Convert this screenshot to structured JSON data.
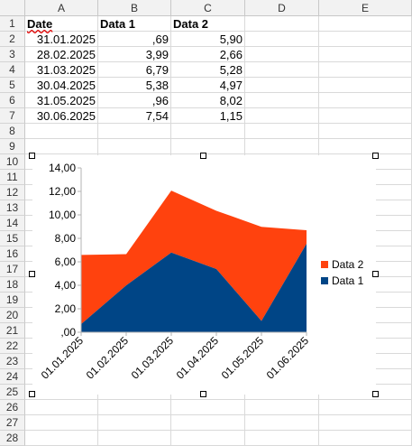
{
  "sheet": {
    "columns": [
      "A",
      "B",
      "C",
      "D",
      "E"
    ],
    "rows": [
      "1",
      "2",
      "3",
      "4",
      "5",
      "6",
      "7",
      "8",
      "9",
      "10",
      "11",
      "12",
      "13",
      "14",
      "15",
      "16",
      "17",
      "18",
      "19",
      "20",
      "21",
      "22",
      "23",
      "24",
      "25",
      "26",
      "27",
      "28"
    ],
    "headers": [
      "Date",
      "Data 1",
      "Data 2"
    ],
    "data": [
      [
        "31.01.2025",
        ",69",
        "5,90"
      ],
      [
        "28.02.2025",
        "3,99",
        "2,66"
      ],
      [
        "31.03.2025",
        "6,79",
        "5,28"
      ],
      [
        "30.04.2025",
        "5,38",
        "4,97"
      ],
      [
        "31.05.2025",
        ",96",
        "8,02"
      ],
      [
        "30.06.2025",
        "7,54",
        "1,15"
      ]
    ]
  },
  "chart_data": {
    "type": "area",
    "stacked": true,
    "categories": [
      "01.01.2025",
      "01.02.2025",
      "01.03.2025",
      "01.04.2025",
      "01.05.2025",
      "01.06.2025"
    ],
    "series": [
      {
        "name": "Data 1",
        "values": [
          0.69,
          3.99,
          6.79,
          5.38,
          0.96,
          7.54
        ],
        "color": "#004586"
      },
      {
        "name": "Data 2",
        "values": [
          5.9,
          2.66,
          5.28,
          4.97,
          8.02,
          1.15
        ],
        "color": "#ff420e"
      }
    ],
    "ylim": [
      0,
      14
    ],
    "yticks": [
      ",00",
      "2,00",
      "4,00",
      "6,00",
      "8,00",
      "10,00",
      "12,00",
      "14,00"
    ],
    "ytick_values": [
      0,
      2,
      4,
      6,
      8,
      10,
      12,
      14
    ],
    "legend": [
      "Data 2",
      "Data 1"
    ],
    "legend_position": "right",
    "grid": false
  }
}
